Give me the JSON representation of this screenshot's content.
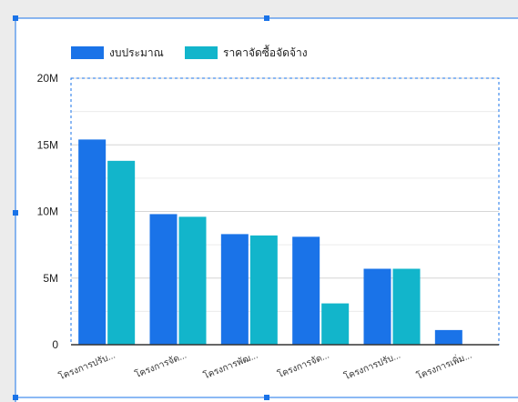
{
  "chart_data": {
    "type": "bar",
    "categories": [
      "โครงการปรับ...",
      "โครงการจัด...",
      "โครงการพัฒ...",
      "โครงการจัด...",
      "โครงการปรับ...",
      "โครงการเพิ่ม..."
    ],
    "series": [
      {
        "name": "งบประมาณ",
        "color": "#1a73e8",
        "values": [
          15400000,
          9800000,
          8300000,
          8100000,
          5700000,
          1100000
        ]
      },
      {
        "name": "ราคาจัดซื้อจัดจ้าง",
        "color": "#12b5cb",
        "values": [
          13800000,
          9600000,
          8200000,
          3100000,
          5700000,
          0
        ]
      }
    ],
    "yticks": [
      {
        "value": 0,
        "label": "0"
      },
      {
        "value": 5000000,
        "label": "5M"
      },
      {
        "value": 10000000,
        "label": "10M"
      },
      {
        "value": 15000000,
        "label": "15M"
      },
      {
        "value": 20000000,
        "label": "20M"
      }
    ],
    "ylim": [
      0,
      20000000
    ],
    "grid": true,
    "legend": "top-left",
    "title": "",
    "xlabel": "",
    "ylabel": ""
  }
}
